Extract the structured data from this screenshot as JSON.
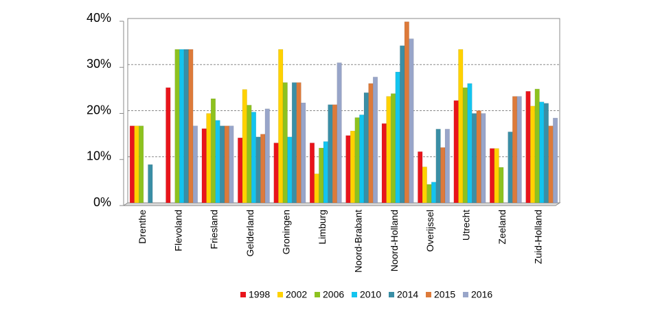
{
  "chart_data": {
    "type": "bar",
    "categories": [
      "Drenthe",
      "Flevoland",
      "Friesland",
      "Gelderland",
      "Groningen",
      "Limburg",
      "Noord-Brabant",
      "Noord-Holland",
      "Overijssel",
      "Utrecht",
      "Zeeland",
      "Zuid-Holland"
    ],
    "series": [
      {
        "name": "1998",
        "color": "#e8141b",
        "values": [
          16.7,
          25,
          16.1,
          14.1,
          13.0,
          13.0,
          14.6,
          17.2,
          11.1,
          22.2,
          11.8,
          24.2
        ]
      },
      {
        "name": "2002",
        "color": "#ffd200",
        "values": [
          16.7,
          0,
          19.4,
          24.6,
          33.3,
          6.3,
          15.6,
          23.1,
          7.8,
          33.3,
          11.8,
          21.0
        ]
      },
      {
        "name": "2006",
        "color": "#8dc21f",
        "values": [
          16.7,
          33.3,
          22.6,
          21.2,
          26.1,
          11.9,
          18.5,
          23.7,
          4.0,
          25.0,
          7.7,
          24.7
        ]
      },
      {
        "name": "2010",
        "color": "#13c4ef",
        "values": [
          0,
          33.3,
          17.9,
          19.7,
          14.3,
          13.3,
          19.1,
          28.4,
          4.5,
          25.9,
          0,
          21.9
        ]
      },
      {
        "name": "2014",
        "color": "#3a8ea5",
        "values": [
          8.3,
          33.3,
          16.7,
          14.3,
          26.1,
          21.3,
          23.9,
          34.1,
          16.0,
          19.4,
          15.4,
          21.6
        ]
      },
      {
        "name": "2015",
        "color": "#dd7a3a",
        "values": [
          0,
          33.3,
          16.7,
          14.9,
          26.1,
          21.3,
          25.9,
          39.3,
          12.0,
          20.0,
          23.1,
          16.7
        ]
      },
      {
        "name": "2016",
        "color": "#98a5c9",
        "values": [
          0,
          16.7,
          16.7,
          20.4,
          21.7,
          30.4,
          27.3,
          35.6,
          16.0,
          19.4,
          23.1,
          18.4
        ]
      }
    ],
    "ylim": [
      0,
      40
    ],
    "yticks": [
      {
        "value": 0,
        "label": "0%"
      },
      {
        "value": 10,
        "label": "10%"
      },
      {
        "value": 20,
        "label": "20%"
      },
      {
        "value": 30,
        "label": "30%"
      },
      {
        "value": 40,
        "label": "40%"
      }
    ],
    "grid": true,
    "legend": "bottom"
  }
}
